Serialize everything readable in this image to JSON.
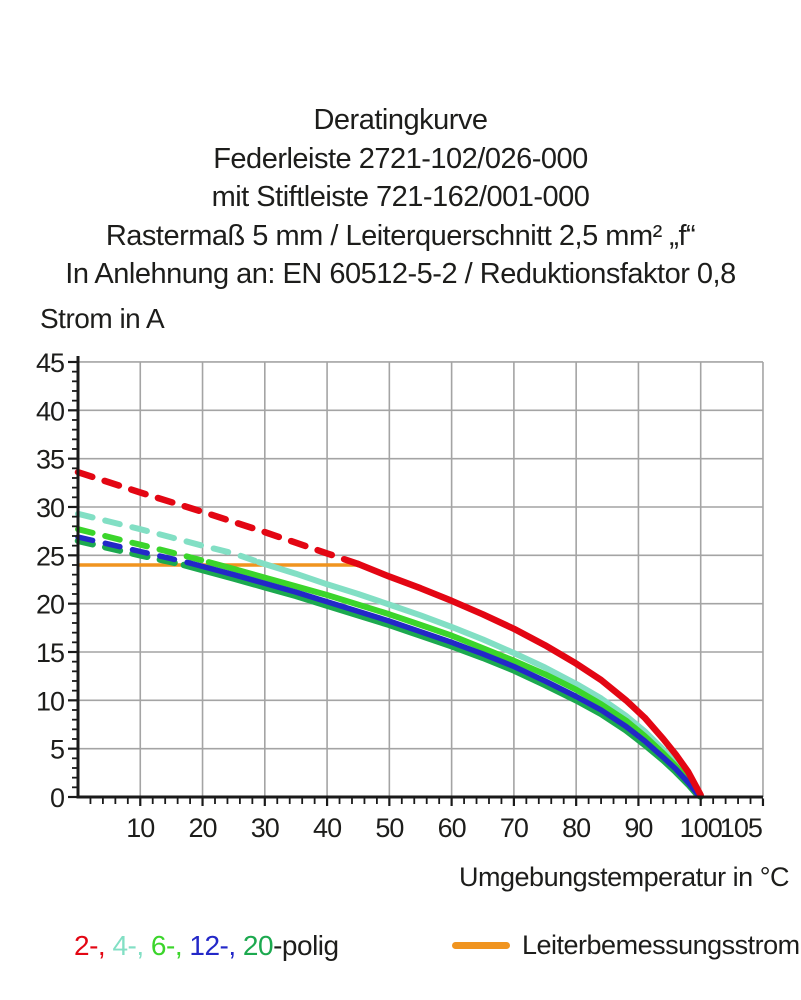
{
  "title_lines": [
    "Deratingkurve",
    "Federleiste 2721-102/026-000",
    "mit Stiftleiste 721-162/001-000",
    "Rastermaß 5 mm / Leiterquerschnitt 2,5 mm² „f“",
    "In Anlehnung an: EN 60512-5-2 / Reduktionsfaktor 0,8"
  ],
  "chart_data": {
    "type": "line",
    "title": "Deratingkurve",
    "xlabel": "Umgebungstemperatur in °C",
    "ylabel": "Strom in A",
    "xlim": [
      0,
      110
    ],
    "ylim": [
      0,
      45
    ],
    "grid": true,
    "x_ticks": [
      {
        "v": 10,
        "label": "10"
      },
      {
        "v": 20,
        "label": "20"
      },
      {
        "v": 30,
        "label": "30"
      },
      {
        "v": 40,
        "label": "40"
      },
      {
        "v": 50,
        "label": "50"
      },
      {
        "v": 60,
        "label": "60"
      },
      {
        "v": 70,
        "label": "70"
      },
      {
        "v": 80,
        "label": "80"
      },
      {
        "v": 90,
        "label": "90"
      },
      {
        "v": 100,
        "label": "100"
      },
      {
        "v": 105,
        "label": "105",
        "dx": 9
      }
    ],
    "y_ticks": [
      0,
      5,
      10,
      15,
      20,
      25,
      30,
      35,
      40,
      45
    ],
    "x_grid_step": 10,
    "y_grid_step": 5,
    "x_minor_step": 2,
    "y_minor_step": 1,
    "note": "curves dashed above Leiterbemessungsstrom (24 A), solid below",
    "reference_line": {
      "label": "Leiterbemessungsstrom",
      "value": 24,
      "x_start": 0,
      "x_end": 45,
      "color": "#F0941F"
    },
    "series": [
      {
        "name": "4-polig",
        "color": "#82DFC4",
        "width": 6,
        "dashed": [
          [
            0,
            29.3
          ],
          [
            5,
            28.5
          ],
          [
            10,
            27.7
          ],
          [
            15,
            26.85
          ],
          [
            20,
            26.0
          ],
          [
            25,
            25.2
          ],
          [
            29,
            24.3
          ]
        ],
        "solid": [
          [
            29,
            24.3
          ],
          [
            35,
            23.1
          ],
          [
            40,
            22.0
          ],
          [
            45,
            21.0
          ],
          [
            50,
            19.9
          ],
          [
            55,
            18.8
          ],
          [
            60,
            17.6
          ],
          [
            65,
            16.3
          ],
          [
            70,
            14.9
          ],
          [
            75,
            13.4
          ],
          [
            80,
            11.7
          ],
          [
            84,
            10.2
          ],
          [
            88,
            8.4
          ],
          [
            91,
            6.8
          ],
          [
            94,
            4.9
          ],
          [
            96,
            3.5
          ],
          [
            98,
            1.9
          ],
          [
            99.5,
            0.5
          ],
          [
            100,
            0.2
          ]
        ]
      },
      {
        "name": "6-polig",
        "color": "#3BD52B",
        "width": 6,
        "dashed": [
          [
            0,
            27.7
          ],
          [
            5,
            26.9
          ],
          [
            10,
            26.1
          ],
          [
            15,
            25.3
          ],
          [
            21,
            24.3
          ]
        ],
        "solid": [
          [
            21,
            24.3
          ],
          [
            25,
            23.6
          ],
          [
            30,
            22.7
          ],
          [
            35,
            21.8
          ],
          [
            40,
            20.9
          ],
          [
            45,
            19.9
          ],
          [
            50,
            18.9
          ],
          [
            55,
            17.8
          ],
          [
            60,
            16.7
          ],
          [
            65,
            15.4
          ],
          [
            70,
            14.1
          ],
          [
            75,
            12.7
          ],
          [
            80,
            11.1
          ],
          [
            84,
            9.6
          ],
          [
            88,
            7.9
          ],
          [
            91,
            6.3
          ],
          [
            94,
            4.5
          ],
          [
            96,
            3.2
          ],
          [
            98,
            1.7
          ],
          [
            99.5,
            0.4
          ],
          [
            100,
            0.15
          ]
        ]
      },
      {
        "name": "20-polig",
        "color": "#1CA94F",
        "width": 6.5,
        "dashed": [
          [
            0,
            26.5
          ],
          [
            5,
            25.75
          ],
          [
            10,
            25.0
          ],
          [
            15,
            24.3
          ],
          [
            17,
            24.0
          ]
        ],
        "solid": [
          [
            17,
            24.0
          ],
          [
            25,
            22.6
          ],
          [
            30,
            21.7
          ],
          [
            35,
            20.8
          ],
          [
            40,
            19.8
          ],
          [
            45,
            18.8
          ],
          [
            50,
            17.8
          ],
          [
            55,
            16.7
          ],
          [
            60,
            15.6
          ],
          [
            65,
            14.4
          ],
          [
            70,
            13.1
          ],
          [
            75,
            11.6
          ],
          [
            80,
            10.0
          ],
          [
            84,
            8.6
          ],
          [
            88,
            6.9
          ],
          [
            91,
            5.4
          ],
          [
            94,
            3.8
          ],
          [
            96,
            2.6
          ],
          [
            98,
            1.3
          ],
          [
            99.5,
            0.2
          ],
          [
            100,
            0.05
          ]
        ]
      },
      {
        "name": "12-polig",
        "color": "#2328C8",
        "width": 5.5,
        "dashed": [
          [
            0,
            26.9
          ],
          [
            5,
            26.15
          ],
          [
            10,
            25.4
          ],
          [
            15,
            24.65
          ],
          [
            18,
            24.2
          ]
        ],
        "solid": [
          [
            18,
            24.2
          ],
          [
            25,
            23.0
          ],
          [
            30,
            22.1
          ],
          [
            35,
            21.2
          ],
          [
            40,
            20.2
          ],
          [
            45,
            19.2
          ],
          [
            50,
            18.2
          ],
          [
            55,
            17.1
          ],
          [
            60,
            16.0
          ],
          [
            65,
            14.8
          ],
          [
            70,
            13.5
          ],
          [
            75,
            12.0
          ],
          [
            80,
            10.4
          ],
          [
            84,
            9.0
          ],
          [
            88,
            7.3
          ],
          [
            91,
            5.8
          ],
          [
            94,
            4.1
          ],
          [
            96,
            2.9
          ],
          [
            98,
            1.5
          ],
          [
            99.5,
            0.3
          ],
          [
            100,
            0.1
          ]
        ]
      },
      {
        "name": "2-polig",
        "color": "#E30613",
        "width": 6.5,
        "dashed": [
          [
            0,
            33.6
          ],
          [
            10,
            31.5
          ],
          [
            20,
            29.5
          ],
          [
            30,
            27.4
          ],
          [
            40,
            25.2
          ],
          [
            45,
            24.1
          ]
        ],
        "solid": [
          [
            45,
            24.1
          ],
          [
            50,
            22.8
          ],
          [
            55,
            21.6
          ],
          [
            60,
            20.3
          ],
          [
            65,
            18.9
          ],
          [
            70,
            17.4
          ],
          [
            75,
            15.7
          ],
          [
            80,
            13.8
          ],
          [
            84,
            12.1
          ],
          [
            88,
            10.0
          ],
          [
            91,
            8.2
          ],
          [
            94,
            6.0
          ],
          [
            96,
            4.4
          ],
          [
            98,
            2.6
          ],
          [
            99.5,
            0.8
          ],
          [
            100,
            0.2
          ]
        ]
      }
    ]
  },
  "legend": {
    "pole_segments": [
      {
        "text": "2-,",
        "color": "#E30613"
      },
      {
        "text": " 4-,",
        "color": "#82DFC4"
      },
      {
        "text": " 6-,",
        "color": "#3BD52B"
      },
      {
        "text": " 12-,",
        "color": "#2328C8"
      },
      {
        "text": " 20",
        "color": "#1CA94F"
      },
      {
        "text": "-polig",
        "color": "#1d1d1b"
      }
    ],
    "reference_label": "Leiterbemessungsstrom"
  },
  "colors": {
    "grid": "#A4A4A4",
    "axis": "#1a1a1a",
    "text": "#1d1d1b",
    "reference": "#F0941F"
  }
}
